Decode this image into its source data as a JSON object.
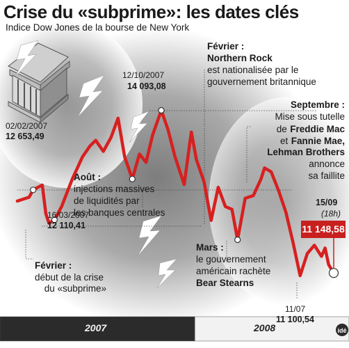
{
  "title": "Crise du «subprime»: les dates clés",
  "subtitle": "Indice Dow Jones de la bourse de New York",
  "colors": {
    "line": "#d62020",
    "background_gray": "#9a9a9a",
    "bar_dark": "#2b2b2b",
    "bar_light": "#f2f2f2",
    "highlight": "#c8201f"
  },
  "icons": [
    "bank-building-icon",
    "lightning-bolt-icon"
  ],
  "chart_data": {
    "type": "line",
    "title": "Crise du «subprime»: les dates clés",
    "subtitle": "Indice Dow Jones de la bourse de New York",
    "x_axis": {
      "type": "date",
      "range": [
        "2007-01-02",
        "2008-09-15"
      ],
      "period_labels": [
        "2007",
        "2008"
      ]
    },
    "ylim": [
      11000,
      14200
    ],
    "series": [
      {
        "values": [
          [
            "2007-01-02",
            12450
          ],
          [
            "2007-01-25",
            12520
          ],
          [
            "2007-02-02",
            12653.49
          ],
          [
            "2007-02-20",
            12740
          ],
          [
            "2007-02-27",
            12220
          ],
          [
            "2007-03-05",
            12050
          ],
          [
            "2007-03-16",
            12110.41
          ],
          [
            "2007-03-30",
            12350
          ],
          [
            "2007-04-20",
            12850
          ],
          [
            "2007-05-10",
            13250
          ],
          [
            "2007-05-25",
            13450
          ],
          [
            "2007-06-05",
            13550
          ],
          [
            "2007-06-20",
            13350
          ],
          [
            "2007-07-05",
            13600
          ],
          [
            "2007-07-19",
            13950
          ],
          [
            "2007-08-01",
            13250
          ],
          [
            "2007-08-16",
            12850
          ],
          [
            "2007-08-30",
            13300
          ],
          [
            "2007-09-12",
            13150
          ],
          [
            "2007-09-25",
            13650
          ],
          [
            "2007-10-12",
            14093.08
          ],
          [
            "2007-10-25",
            13750
          ],
          [
            "2007-11-08",
            13250
          ],
          [
            "2007-11-26",
            12750
          ],
          [
            "2007-12-10",
            13700
          ],
          [
            "2007-12-20",
            13200
          ],
          [
            "2008-01-04",
            12800
          ],
          [
            "2008-01-18",
            12100
          ],
          [
            "2008-02-01",
            12700
          ],
          [
            "2008-02-15",
            12350
          ],
          [
            "2008-02-28",
            12300
          ],
          [
            "2008-03-10",
            11750
          ],
          [
            "2008-03-25",
            12500
          ],
          [
            "2008-04-10",
            12550
          ],
          [
            "2008-04-25",
            12850
          ],
          [
            "2008-05-02",
            13050
          ],
          [
            "2008-05-15",
            12980
          ],
          [
            "2008-05-30",
            12630
          ],
          [
            "2008-06-13",
            12250
          ],
          [
            "2008-06-27",
            11700
          ],
          [
            "2008-07-11",
            11100.54
          ],
          [
            "2008-07-25",
            11500
          ],
          [
            "2008-08-08",
            11650
          ],
          [
            "2008-08-22",
            11450
          ],
          [
            "2008-08-29",
            11600
          ],
          [
            "2008-09-05",
            11300
          ],
          [
            "2008-09-15",
            11148.58
          ]
        ]
      }
    ],
    "annotations": {
      "feb2007_peak": {
        "date_label": "02/02/2007",
        "value_label": "12 653,49"
      },
      "mar2007_low": {
        "date_label": "16/03/2007",
        "value_label": "12 110,41"
      },
      "oct2007_peak": {
        "date_label": "12/10/2007",
        "value_label": "14 093,08"
      },
      "jul2008_low": {
        "date_label": "11/07",
        "value_label": "11 100,54"
      },
      "sep2008_close": {
        "date_label": "15/09",
        "time_label": "(18h)",
        "value_label": "11 148,58"
      }
    },
    "events": {
      "fevrier_2007": {
        "label": "Février :",
        "text": [
          "début de la crise",
          "du «subprime»"
        ]
      },
      "aout_2007": {
        "label": "Août :",
        "text": [
          "injections massives",
          "de liquidités par",
          "les banques centrales"
        ]
      },
      "fevrier_2008": {
        "label": "Février :",
        "bold": "Northern Rock",
        "text": [
          "est nationalisée par le",
          "gouvernement britannique"
        ]
      },
      "mars_2008": {
        "label": "Mars :",
        "text": [
          "le gouvernement",
          "américain rachète"
        ],
        "bold_end": "Bear Stearns"
      },
      "septembre_2008": {
        "label": "Septembre :",
        "text_1": "Mise sous tutelle",
        "text_2": "de",
        "bold_1": "Freddie Mac",
        "text_3": "et",
        "bold_2": "Fannie Mae,",
        "bold_3": "Lehman Brothers",
        "text_4": "annonce",
        "text_5": "sa faillite"
      }
    },
    "grid": false,
    "legend": "none"
  },
  "credit": "idé"
}
